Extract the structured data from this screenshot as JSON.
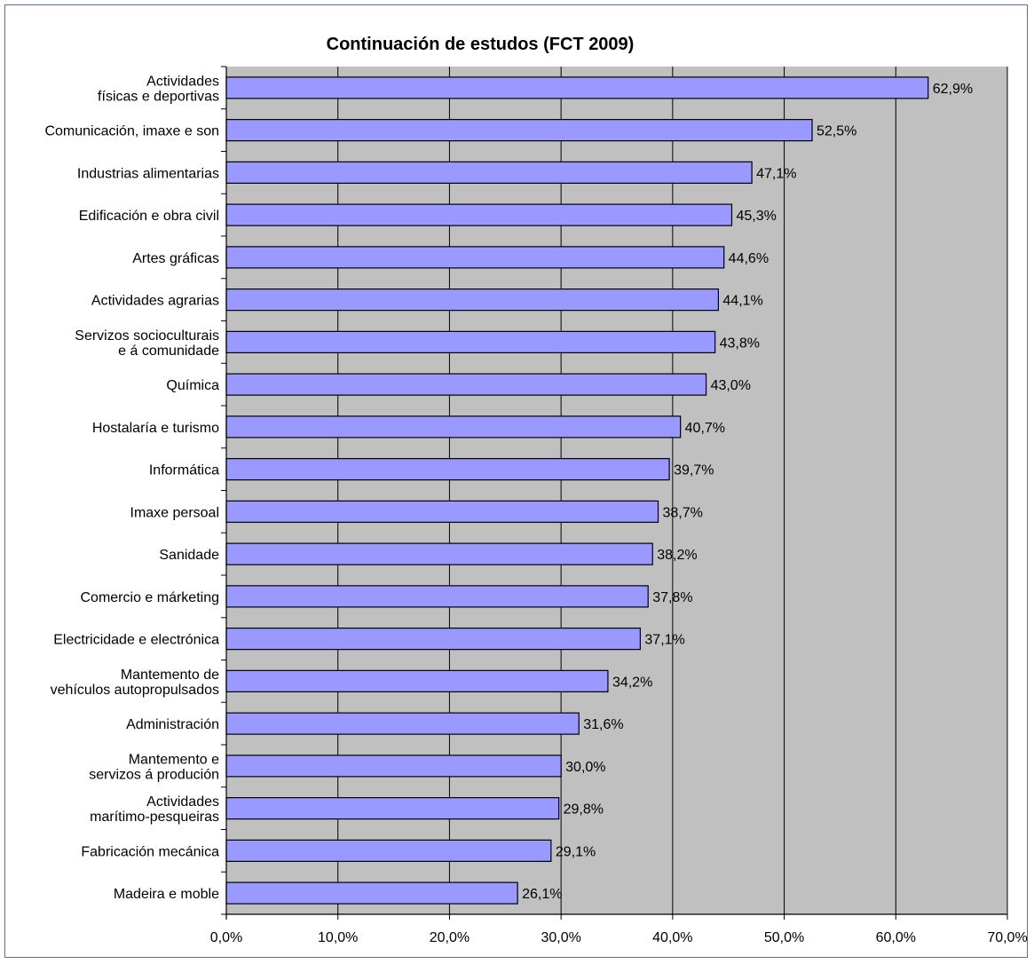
{
  "chart_data": {
    "type": "bar",
    "orientation": "horizontal",
    "title": "Continuación de estudos (FCT 2009)",
    "categories": [
      [
        "Actividades",
        "físicas e deportivas"
      ],
      [
        "Comunicación, imaxe e son"
      ],
      [
        "Industrias alimentarias"
      ],
      [
        "Edificación e obra civil"
      ],
      [
        "Artes gráficas"
      ],
      [
        "Actividades agrarias"
      ],
      [
        "Servizos socioculturais",
        "e á comunidade"
      ],
      [
        "Química"
      ],
      [
        "Hostalaría e turismo"
      ],
      [
        "Informática"
      ],
      [
        "Imaxe persoal"
      ],
      [
        "Sanidade"
      ],
      [
        "Comercio e márketing"
      ],
      [
        "Electricidade e electrónica"
      ],
      [
        "Mantemento de",
        "vehículos autopropulsados"
      ],
      [
        "Administración"
      ],
      [
        "Mantemento e",
        "servizos á produción"
      ],
      [
        "Actividades",
        "marítimo-pesqueiras"
      ],
      [
        "Fabricación mecánica"
      ],
      [
        "Madeira e moble"
      ]
    ],
    "values": [
      62.9,
      52.5,
      47.1,
      45.3,
      44.6,
      44.1,
      43.8,
      43.0,
      40.7,
      39.7,
      38.7,
      38.2,
      37.8,
      37.1,
      34.2,
      31.6,
      30.0,
      29.8,
      29.1,
      26.1
    ],
    "value_labels": [
      "62,9%",
      "52,5%",
      "47,1%",
      "45,3%",
      "44,6%",
      "44,1%",
      "43,8%",
      "43,0%",
      "40,7%",
      "39,7%",
      "38,7%",
      "38,2%",
      "37,8%",
      "37,1%",
      "34,2%",
      "31,6%",
      "30,0%",
      "29,8%",
      "29,1%",
      "26,1%"
    ],
    "xlim": [
      0,
      70
    ],
    "x_ticks": [
      0,
      10,
      20,
      30,
      40,
      50,
      60,
      70
    ],
    "x_tick_labels": [
      "0,0%",
      "10,0%",
      "20,0%",
      "30,0%",
      "40,0%",
      "50,0%",
      "60,0%",
      "70,0%"
    ],
    "grid": "vertical",
    "legend": "none",
    "colors": {
      "bar": "#9999ff",
      "bar_border": "#000000",
      "plot_background": "#c0c0c0",
      "frame_border": "#4f6fb8"
    }
  }
}
